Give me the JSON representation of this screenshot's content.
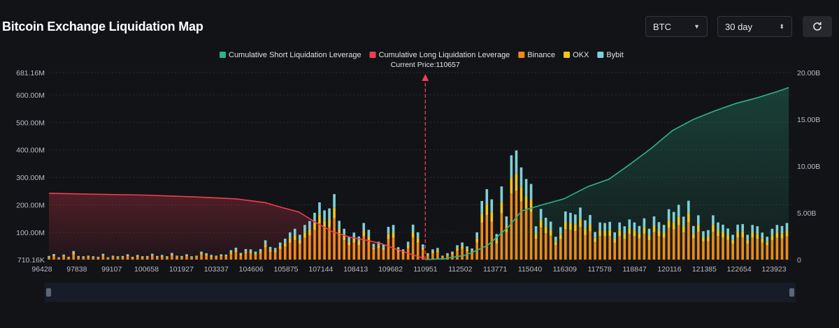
{
  "header": {
    "title": "Bitcoin Exchange Liquidation Map",
    "coin_select": "BTC",
    "range_select": "30 day",
    "refresh_icon": "refresh-icon"
  },
  "colors": {
    "short": "#2bb38a",
    "long": "#f23c52",
    "binance": "#f08a16",
    "okx": "#f4c51c",
    "bybit": "#7ed1d6",
    "background": "#121317"
  },
  "chart_data": {
    "type": "bar",
    "legend": [
      {
        "name": "Cumulative Short Liquidation Leverage",
        "color": "#2bb38a"
      },
      {
        "name": "Cumulative Long Liquidation Leverage",
        "color": "#f23c52"
      },
      {
        "name": "Binance",
        "color": "#f08a16"
      },
      {
        "name": "OKX",
        "color": "#f4c51c"
      },
      {
        "name": "Bybit",
        "color": "#7ed1d6"
      }
    ],
    "legend_position": "top-center",
    "current_price_label": "Current Price:110657",
    "current_price": 110657,
    "x_ticks": [
      "96428",
      "97838",
      "99107",
      "100658",
      "101927",
      "103337",
      "104606",
      "105875",
      "107144",
      "108413",
      "109682",
      "110951",
      "112502",
      "113771",
      "115040",
      "116309",
      "117578",
      "118847",
      "120116",
      "121385",
      "122654",
      "123923"
    ],
    "x_range": [
      96428,
      124500
    ],
    "y_left_ticks": [
      "681.16M",
      "600.00M",
      "500.00M",
      "400.00M",
      "300.00M",
      "200.00M",
      "100.00M",
      "710.16K"
    ],
    "y_left_values": [
      681.16,
      600,
      500,
      400,
      300,
      200,
      100,
      0.71
    ],
    "y_left_range": [
      0.71,
      681.16
    ],
    "y_right_ticks": [
      "20.00B",
      "15.00B",
      "10.00B",
      "5.00B",
      "0"
    ],
    "y_right_values": [
      20,
      15,
      10,
      5,
      0
    ],
    "y_right_range": [
      0,
      20
    ],
    "grid": true,
    "short_cumulative": {
      "unit": "B",
      "x": [
        110657,
        111400,
        112200,
        113000,
        113800,
        114300,
        115000,
        115900,
        116800,
        117600,
        118400,
        119200,
        120000,
        120800,
        121600,
        122400,
        123200,
        124000,
        124400
      ],
      "y": [
        0,
        0.1,
        0.5,
        1.5,
        3.5,
        5.2,
        5.8,
        6.5,
        7.8,
        8.6,
        10.2,
        11.9,
        13.8,
        15.0,
        15.9,
        16.7,
        17.3,
        18.0,
        18.4
      ]
    },
    "long_cumulative": {
      "unit": "B",
      "x": [
        96428,
        98000,
        100000,
        102000,
        103500,
        104600,
        105200,
        105875,
        106500,
        107144,
        107800,
        108413,
        109000,
        109682,
        110200,
        110657
      ],
      "y": [
        7.1,
        7.0,
        6.9,
        6.7,
        6.5,
        6.1,
        5.6,
        5.1,
        4.0,
        3.0,
        2.4,
        2.1,
        1.7,
        1.0,
        0.5,
        0.1
      ]
    },
    "series_note": "Stacked bars per price level, values in M",
    "bars": {
      "price": [
        96428,
        96614,
        96800,
        96986,
        97172,
        97358,
        97544,
        97730,
        97916,
        98102,
        98288,
        98474,
        98660,
        98846,
        99032,
        99218,
        99404,
        99590,
        99776,
        99962,
        100148,
        100334,
        100520,
        100706,
        100892,
        101078,
        101264,
        101450,
        101636,
        101822,
        102008,
        102194,
        102380,
        102566,
        102752,
        102938,
        103124,
        103310,
        103496,
        103682,
        103868,
        104054,
        104240,
        104426,
        104612,
        104798,
        104984,
        105170,
        105356,
        105542,
        105728,
        105914,
        106100,
        106286,
        106472,
        106658,
        106844,
        107030,
        107216,
        107402,
        107588,
        107774,
        107960,
        108146,
        108332,
        108518,
        108704,
        108890,
        109076,
        109262,
        109448,
        109634,
        109820,
        110006,
        110192,
        110378,
        110564,
        110750,
        110936,
        111122,
        111308,
        111494,
        111680,
        111866,
        112052,
        112238,
        112424,
        112610,
        112796,
        112982,
        113168,
        113354,
        113540,
        113726,
        113912,
        114098,
        114284,
        114470,
        114656,
        114842,
        115028,
        115214,
        115400,
        115586,
        115772,
        115958,
        116144,
        116330,
        116516,
        116702,
        116888,
        117074,
        117260,
        117446,
        117632,
        117818,
        118004,
        118190,
        118376,
        118562,
        118748,
        118934,
        119120,
        119306,
        119492,
        119678,
        119864,
        120050,
        120236,
        120422,
        120608,
        120794,
        120980,
        121166,
        121352,
        121538,
        121724,
        121910,
        122096,
        122282,
        122468,
        122654,
        122840,
        123026,
        123212,
        123398,
        123584,
        123770,
        123956,
        124142,
        124328
      ],
      "Binance": [
        9,
        13,
        6,
        12,
        7,
        20,
        9,
        8,
        10,
        8,
        7,
        14,
        6,
        10,
        8,
        9,
        13,
        7,
        11,
        8,
        9,
        14,
        9,
        11,
        8,
        16,
        10,
        9,
        13,
        8,
        10,
        19,
        15,
        11,
        10,
        13,
        12,
        22,
        28,
        16,
        25,
        24,
        19,
        25,
        45,
        30,
        27,
        40,
        49,
        63,
        71,
        58,
        80,
        89,
        108,
        132,
        114,
        118,
        151,
        90,
        71,
        53,
        62,
        54,
        85,
        69,
        37,
        42,
        35,
        76,
        80,
        29,
        24,
        42,
        81,
        63,
        35,
        15,
        24,
        27,
        10,
        15,
        19,
        34,
        40,
        31,
        26,
        63,
        135,
        162,
        139,
        59,
        169,
        100,
        240,
        251,
        212,
        186,
        174,
        77,
        117,
        97,
        88,
        53,
        75,
        111,
        108,
        104,
        120,
        91,
        103,
        64,
        86,
        85,
        87,
        63,
        86,
        77,
        93,
        86,
        78,
        95,
        71,
        100,
        86,
        80,
        116,
        110,
        126,
        99,
        136,
        78,
        102,
        66,
        68,
        102,
        86,
        81,
        72,
        58,
        81,
        82,
        58,
        80,
        77,
        62,
        53,
        71,
        80,
        78,
        85
      ],
      "OKX": [
        2,
        3,
        1,
        3,
        2,
        5,
        2,
        2,
        2,
        2,
        2,
        3,
        1,
        2,
        2,
        2,
        3,
        2,
        3,
        2,
        2,
        3,
        2,
        3,
        2,
        4,
        2,
        2,
        3,
        2,
        2,
        5,
        4,
        3,
        2,
        3,
        3,
        6,
        7,
        4,
        6,
        6,
        5,
        6,
        11,
        7,
        7,
        10,
        12,
        16,
        18,
        14,
        20,
        22,
        27,
        33,
        28,
        30,
        38,
        22,
        18,
        13,
        16,
        13,
        21,
        17,
        9,
        10,
        9,
        19,
        20,
        7,
        6,
        10,
        20,
        16,
        9,
        4,
        6,
        7,
        2,
        4,
        5,
        8,
        10,
        8,
        6,
        16,
        34,
        41,
        35,
        15,
        42,
        25,
        60,
        63,
        53,
        46,
        44,
        19,
        29,
        24,
        22,
        13,
        19,
        28,
        27,
        26,
        30,
        23,
        26,
        16,
        21,
        21,
        22,
        16,
        21,
        19,
        23,
        21,
        19,
        24,
        18,
        25,
        22,
        20,
        29,
        27,
        32,
        25,
        34,
        19,
        26,
        16,
        17,
        26,
        21,
        20,
        18,
        14,
        20,
        21,
        14,
        20,
        19,
        16,
        13,
        18,
        20,
        19,
        21
      ],
      "Bybit": [
        3,
        5,
        2,
        4,
        2,
        7,
        3,
        3,
        3,
        3,
        2,
        5,
        2,
        3,
        3,
        3,
        4,
        2,
        4,
        3,
        3,
        5,
        3,
        4,
        3,
        5,
        3,
        3,
        4,
        3,
        3,
        6,
        5,
        4,
        3,
        4,
        4,
        7,
        9,
        5,
        8,
        8,
        6,
        8,
        15,
        10,
        9,
        13,
        16,
        21,
        24,
        19,
        27,
        30,
        36,
        44,
        38,
        39,
        50,
        30,
        24,
        18,
        21,
        18,
        28,
        23,
        12,
        14,
        12,
        25,
        27,
        10,
        8,
        14,
        27,
        21,
        12,
        5,
        8,
        9,
        3,
        5,
        6,
        11,
        13,
        10,
        9,
        21,
        45,
        54,
        46,
        20,
        56,
        33,
        80,
        84,
        71,
        62,
        58,
        26,
        39,
        32,
        29,
        18,
        25,
        37,
        36,
        35,
        40,
        30,
        34,
        21,
        29,
        28,
        29,
        21,
        29,
        26,
        31,
        29,
        26,
        32,
        24,
        33,
        29,
        27,
        39,
        37,
        42,
        33,
        45,
        26,
        34,
        22,
        23,
        34,
        29,
        27,
        24,
        19,
        27,
        27,
        19,
        27,
        26,
        21,
        18,
        24,
        27,
        26,
        28
      ]
    }
  }
}
